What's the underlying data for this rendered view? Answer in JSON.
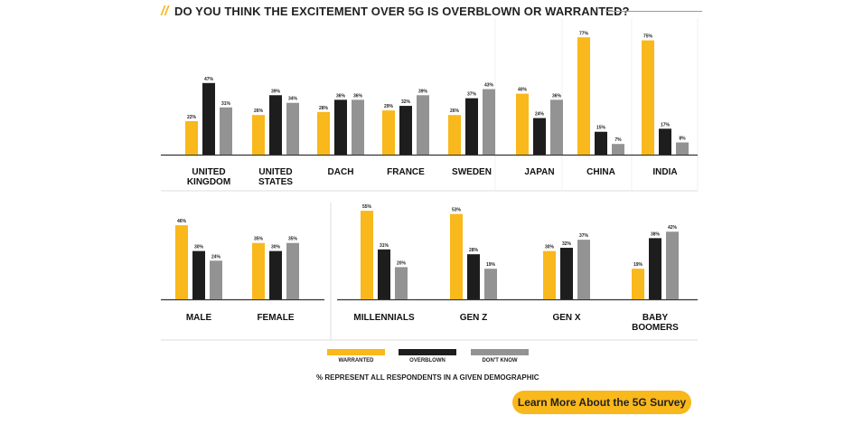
{
  "title": {
    "prefix": "//",
    "text": "DO YOU THINK THE EXCITEMENT OVER 5G IS OVERBLOWN OR WARRANTED?"
  },
  "colors": {
    "warranted": "#f9b81b",
    "overblown": "#1d1d1d",
    "dont_know": "#939393",
    "grid": "#dddddd",
    "axis": "#333333"
  },
  "chart_data": [
    {
      "type": "bar",
      "title": "DO YOU THINK THE EXCITEMENT OVER 5G IS OVERBLOWN OR WARRANTED?",
      "unit": "%",
      "ylim": [
        0,
        80
      ],
      "categories": [
        [
          "UNITED",
          "KINGDOM"
        ],
        [
          "UNITED",
          "STATES"
        ],
        [
          "DACH"
        ],
        [
          "FRANCE"
        ],
        [
          "SWEDEN"
        ],
        [
          "JAPAN"
        ],
        [
          "CHINA"
        ],
        [
          "INDIA"
        ]
      ],
      "series": [
        {
          "name": "WARRANTED",
          "values": [
            22,
            26,
            28,
            29,
            26,
            40,
            77,
            75
          ]
        },
        {
          "name": "OVERBLOWN",
          "values": [
            47,
            39,
            36,
            32,
            37,
            24,
            15,
            17
          ]
        },
        {
          "name": "DON'T KNOW",
          "values": [
            31,
            34,
            36,
            39,
            43,
            36,
            7,
            8
          ]
        }
      ]
    },
    {
      "type": "bar",
      "unit": "%",
      "ylim": [
        0,
        80
      ],
      "categories": [
        [
          "MALE"
        ],
        [
          "FEMALE"
        ]
      ],
      "series": [
        {
          "name": "WARRANTED",
          "values": [
            46,
            35
          ]
        },
        {
          "name": "OVERBLOWN",
          "values": [
            30,
            30
          ]
        },
        {
          "name": "DON'T KNOW",
          "values": [
            24,
            35
          ]
        }
      ]
    },
    {
      "type": "bar",
      "unit": "%",
      "ylim": [
        0,
        80
      ],
      "categories": [
        [
          "MILLENNIALS"
        ],
        [
          "GEN Z"
        ],
        [
          "GEN X"
        ],
        [
          "BABY",
          "BOOMERS"
        ]
      ],
      "series": [
        {
          "name": "WARRANTED",
          "values": [
            55,
            53,
            30,
            19
          ]
        },
        {
          "name": "OVERBLOWN",
          "values": [
            31,
            28,
            32,
            38
          ]
        },
        {
          "name": "DON'T KNOW",
          "values": [
            20,
            19,
            37,
            42
          ]
        }
      ]
    }
  ],
  "legend": {
    "items": [
      {
        "label": "WARRANTED",
        "color": "#f9b81b"
      },
      {
        "label": "OVERBLOWN",
        "color": "#1d1d1d"
      },
      {
        "label": "DON'T KNOW",
        "color": "#939393"
      }
    ]
  },
  "footnote": "% REPRESENT ALL RESPONDENTS IN A GIVEN DEMOGRAPHIC",
  "cta": {
    "label": "Learn More About the 5G Survey"
  }
}
